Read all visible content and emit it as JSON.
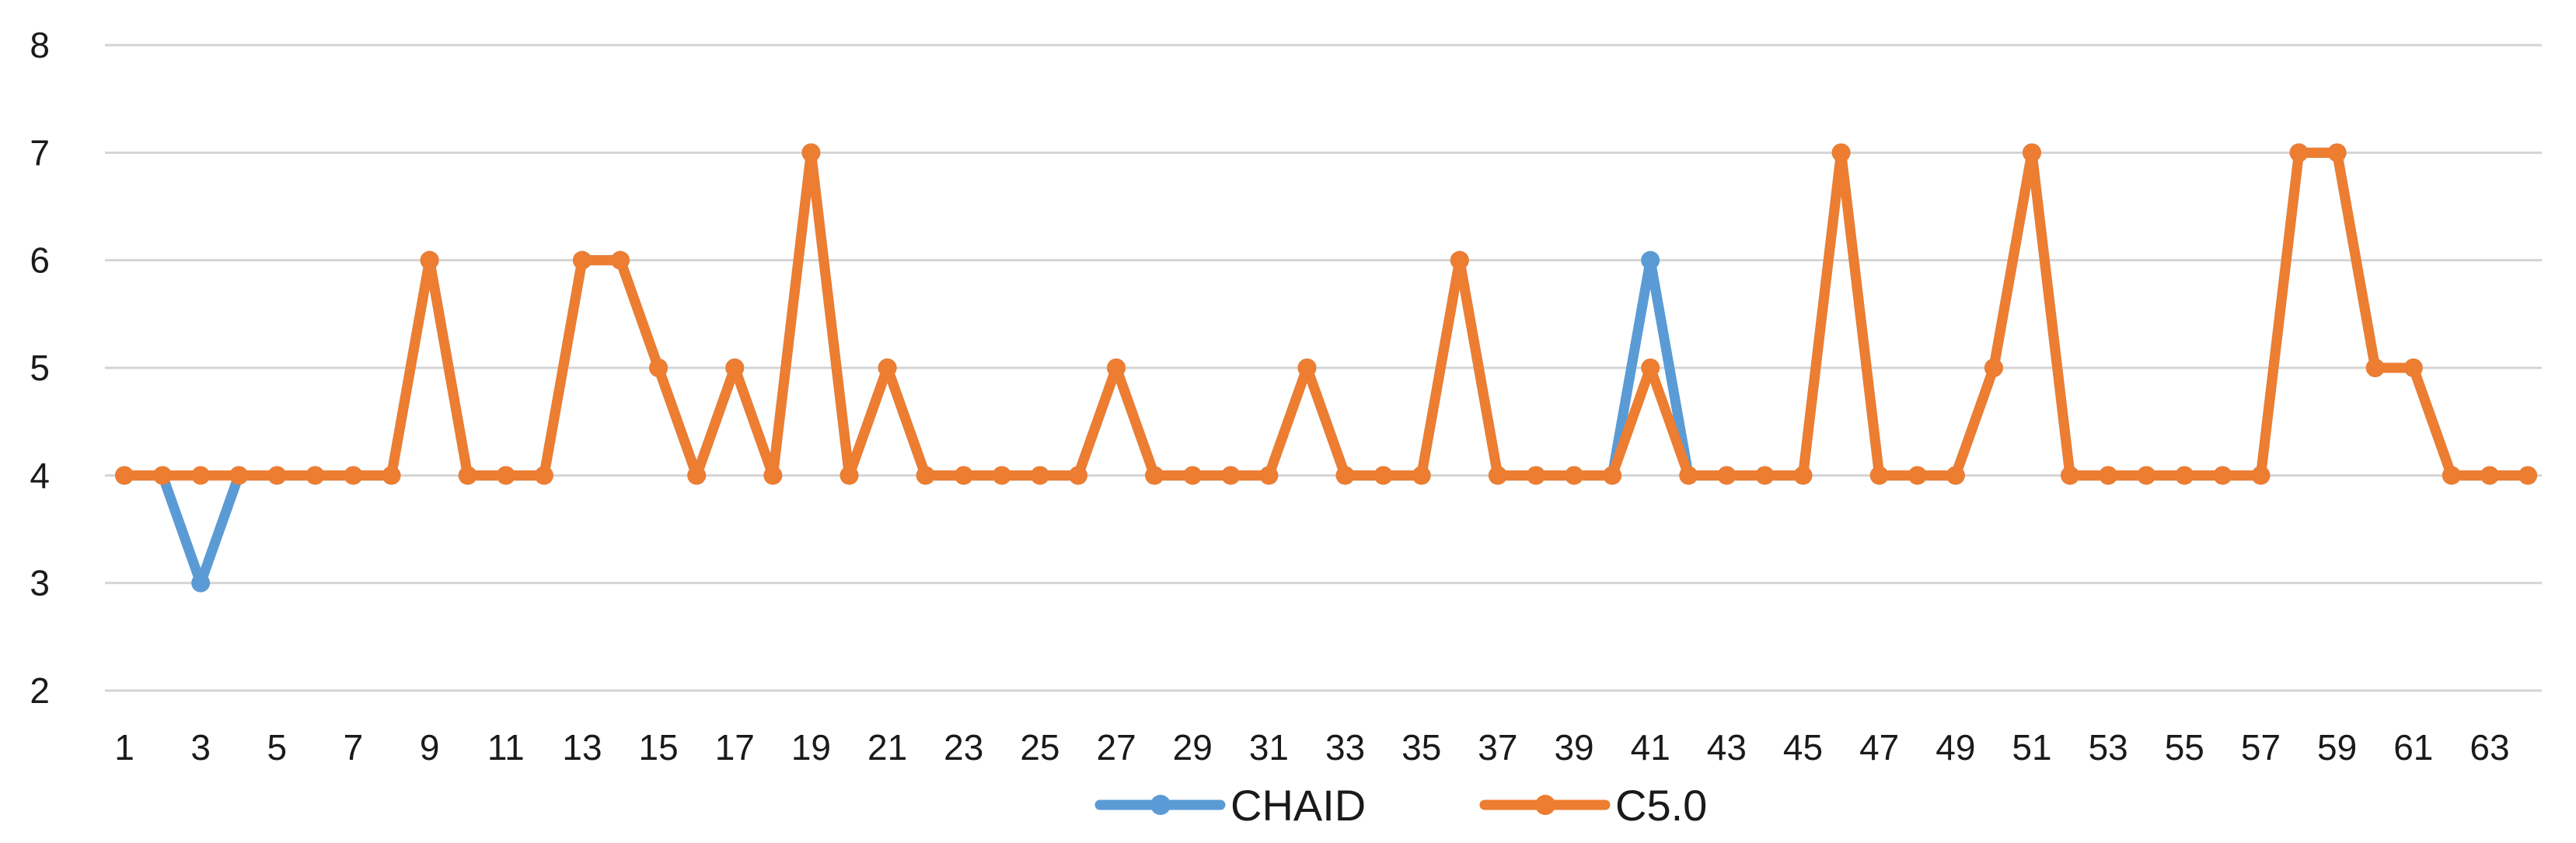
{
  "chart_data": {
    "type": "line",
    "x": [
      1,
      2,
      3,
      4,
      5,
      6,
      7,
      8,
      9,
      10,
      11,
      12,
      13,
      14,
      15,
      16,
      17,
      18,
      19,
      20,
      21,
      22,
      23,
      24,
      25,
      26,
      27,
      28,
      29,
      30,
      31,
      32,
      33,
      34,
      35,
      36,
      37,
      38,
      39,
      40,
      41,
      42,
      43,
      44,
      45,
      46,
      47,
      48,
      49,
      50,
      51,
      52,
      53,
      54,
      55,
      56,
      57,
      58,
      59,
      60,
      61,
      62,
      63,
      64
    ],
    "x_tick_labels": [
      "1",
      "3",
      "5",
      "7",
      "9",
      "11",
      "13",
      "15",
      "17",
      "19",
      "21",
      "23",
      "25",
      "27",
      "29",
      "31",
      "33",
      "35",
      "37",
      "39",
      "41",
      "43",
      "45",
      "47",
      "49",
      "51",
      "53",
      "55",
      "57",
      "59",
      "61",
      "63"
    ],
    "y_tick_labels": [
      "2",
      "3",
      "4",
      "5",
      "6",
      "7",
      "8"
    ],
    "ylim": [
      2,
      8
    ],
    "grid": true,
    "legend_position": "bottom",
    "series": [
      {
        "name": "CHAID",
        "color": "#5b9bd5",
        "values": [
          4,
          4,
          3,
          4,
          4,
          4,
          4,
          4,
          6,
          4,
          4,
          4,
          6,
          6,
          5,
          4,
          5,
          4,
          7,
          4,
          5,
          4,
          4,
          4,
          4,
          4,
          5,
          4,
          4,
          4,
          4,
          5,
          4,
          4,
          4,
          6,
          4,
          4,
          4,
          4,
          6,
          4,
          4,
          4,
          4,
          7,
          4,
          4,
          4,
          5,
          7,
          4,
          4,
          4,
          4,
          4,
          4,
          7,
          7,
          5,
          5,
          4,
          4,
          4
        ]
      },
      {
        "name": "C5.0",
        "color": "#ed7d31",
        "values": [
          4,
          4,
          4,
          4,
          4,
          4,
          4,
          4,
          6,
          4,
          4,
          4,
          6,
          6,
          5,
          4,
          5,
          4,
          7,
          4,
          5,
          4,
          4,
          4,
          4,
          4,
          5,
          4,
          4,
          4,
          4,
          5,
          4,
          4,
          4,
          6,
          4,
          4,
          4,
          4,
          5,
          4,
          4,
          4,
          4,
          7,
          4,
          4,
          4,
          5,
          7,
          4,
          4,
          4,
          4,
          4,
          4,
          7,
          7,
          5,
          5,
          4,
          4,
          4
        ]
      }
    ]
  }
}
